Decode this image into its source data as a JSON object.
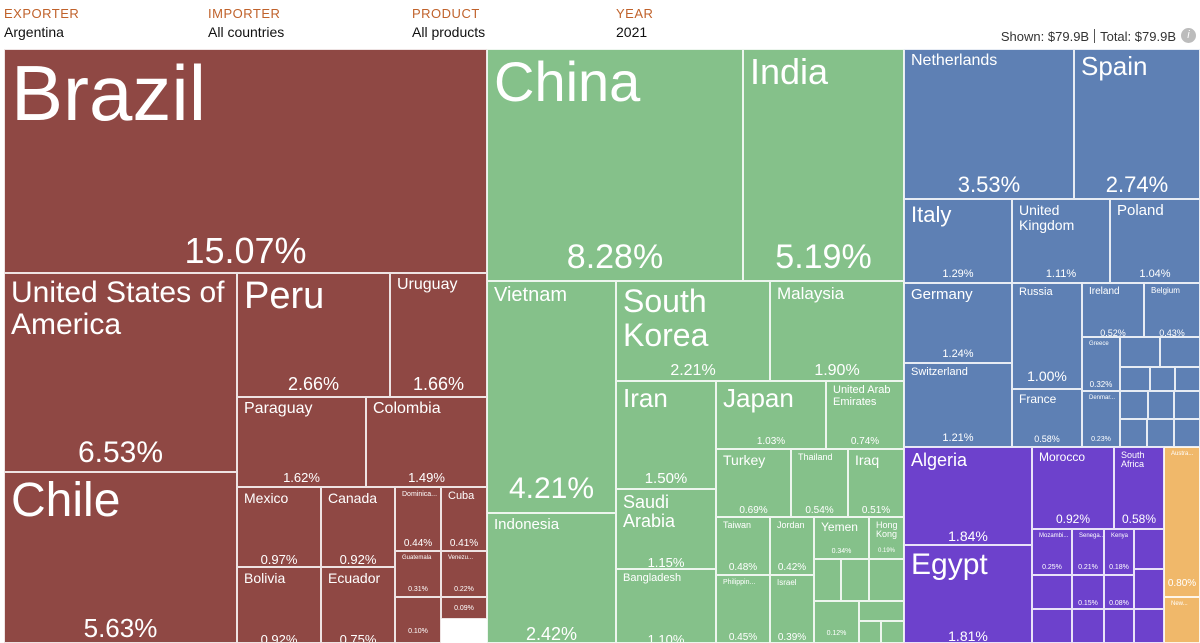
{
  "header": {
    "exporter": {
      "label": "EXPORTER",
      "value": "Argentina"
    },
    "importer": {
      "label": "IMPORTER",
      "value": "All countries"
    },
    "product": {
      "label": "PRODUCT",
      "value": "All products"
    },
    "year": {
      "label": "YEAR",
      "value": "2021"
    }
  },
  "summary": {
    "shown_label": "Shown:",
    "shown_value": "$79.9B",
    "total_label": "Total:",
    "total_value": "$79.9B",
    "info_icon": "info-icon"
  },
  "colors": {
    "americas": "#8f4844",
    "asia": "#85c18a",
    "europe": "#5e80b4",
    "africa": "#6d41cc",
    "oceania": "#f0b86a"
  },
  "treemap": [
    {
      "name": "Brazil",
      "share": "15.07%",
      "region": "americas"
    },
    {
      "name": "United States of America",
      "share": "6.53%",
      "region": "americas"
    },
    {
      "name": "Peru",
      "share": "2.66%",
      "region": "americas"
    },
    {
      "name": "Uruguay",
      "share": "1.66%",
      "region": "americas"
    },
    {
      "name": "Paraguay",
      "share": "1.62%",
      "region": "americas"
    },
    {
      "name": "Colombia",
      "share": "1.49%",
      "region": "americas"
    },
    {
      "name": "Chile",
      "share": "5.63%",
      "region": "americas"
    },
    {
      "name": "Mexico",
      "share": "0.97%",
      "region": "americas"
    },
    {
      "name": "Canada",
      "share": "0.92%",
      "region": "americas"
    },
    {
      "name": "Dominica...",
      "share": "0.44%",
      "region": "americas"
    },
    {
      "name": "Cuba",
      "share": "0.41%",
      "region": "americas"
    },
    {
      "name": "Guatemala",
      "share": "0.31%",
      "region": "americas"
    },
    {
      "name": "Venezu...",
      "share": "0.22%",
      "region": "americas"
    },
    {
      "name": "",
      "share": "0.09%",
      "region": "americas"
    },
    {
      "name": "",
      "share": "0.10%",
      "region": "americas"
    },
    {
      "name": "Bolivia",
      "share": "0.92%",
      "region": "americas"
    },
    {
      "name": "Ecuador",
      "share": "0.75%",
      "region": "americas"
    },
    {
      "name": "China",
      "share": "8.28%",
      "region": "asia"
    },
    {
      "name": "India",
      "share": "5.19%",
      "region": "asia"
    },
    {
      "name": "Vietnam",
      "share": "4.21%",
      "region": "asia"
    },
    {
      "name": "South Korea",
      "share": "2.21%",
      "region": "asia"
    },
    {
      "name": "Malaysia",
      "share": "1.90%",
      "region": "asia"
    },
    {
      "name": "Iran",
      "share": "1.50%",
      "region": "asia"
    },
    {
      "name": "Japan",
      "share": "1.03%",
      "region": "asia"
    },
    {
      "name": "United Arab Emirates",
      "share": "0.74%",
      "region": "asia"
    },
    {
      "name": "Turkey",
      "share": "0.69%",
      "region": "asia"
    },
    {
      "name": "Thailand",
      "share": "0.54%",
      "region": "asia"
    },
    {
      "name": "Iraq",
      "share": "0.51%",
      "region": "asia"
    },
    {
      "name": "Saudi Arabia",
      "share": "1.15%",
      "region": "asia"
    },
    {
      "name": "Indonesia",
      "share": "2.42%",
      "region": "asia"
    },
    {
      "name": "Taiwan",
      "share": "0.48%",
      "region": "asia"
    },
    {
      "name": "Jordan",
      "share": "0.42%",
      "region": "asia"
    },
    {
      "name": "Yemen",
      "share": "0.34%",
      "region": "asia"
    },
    {
      "name": "Hong Kong",
      "share": "0.19%",
      "region": "asia"
    },
    {
      "name": "Bangladesh",
      "share": "1.10%",
      "region": "asia"
    },
    {
      "name": "Philippin...",
      "share": "0.45%",
      "region": "asia"
    },
    {
      "name": "Israel",
      "share": "0.39%",
      "region": "asia"
    },
    {
      "name": "",
      "share": "0.12%",
      "region": "asia"
    },
    {
      "name": "Netherlands",
      "share": "3.53%",
      "region": "europe"
    },
    {
      "name": "Spain",
      "share": "2.74%",
      "region": "europe"
    },
    {
      "name": "Italy",
      "share": "1.29%",
      "region": "europe"
    },
    {
      "name": "United Kingdom",
      "share": "1.11%",
      "region": "europe"
    },
    {
      "name": "Poland",
      "share": "1.04%",
      "region": "europe"
    },
    {
      "name": "Germany",
      "share": "1.24%",
      "region": "europe"
    },
    {
      "name": "Russia",
      "share": "1.00%",
      "region": "europe"
    },
    {
      "name": "Ireland",
      "share": "0.52%",
      "region": "europe"
    },
    {
      "name": "Belgium",
      "share": "0.43%",
      "region": "europe"
    },
    {
      "name": "Greece",
      "share": "0.32%",
      "region": "europe"
    },
    {
      "name": "Switzerland",
      "share": "1.21%",
      "region": "europe"
    },
    {
      "name": "France",
      "share": "0.58%",
      "region": "europe"
    },
    {
      "name": "Denmar...",
      "share": "0.23%",
      "region": "europe"
    },
    {
      "name": "Algeria",
      "share": "1.84%",
      "region": "africa"
    },
    {
      "name": "Morocco",
      "share": "0.92%",
      "region": "africa"
    },
    {
      "name": "South Africa",
      "share": "0.58%",
      "region": "africa"
    },
    {
      "name": "Mozambi...",
      "share": "0.25%",
      "region": "africa"
    },
    {
      "name": "Senega...",
      "share": "0.21%",
      "region": "africa"
    },
    {
      "name": "Kenya",
      "share": "0.18%",
      "region": "africa"
    },
    {
      "name": "",
      "share": "0.15%",
      "region": "africa"
    },
    {
      "name": "",
      "share": "0.08%",
      "region": "africa"
    },
    {
      "name": "Egypt",
      "share": "1.81%",
      "region": "africa"
    },
    {
      "name": "Austra...",
      "share": "0.80%",
      "region": "oceania"
    },
    {
      "name": "New...",
      "share": "",
      "region": "oceania"
    }
  ]
}
